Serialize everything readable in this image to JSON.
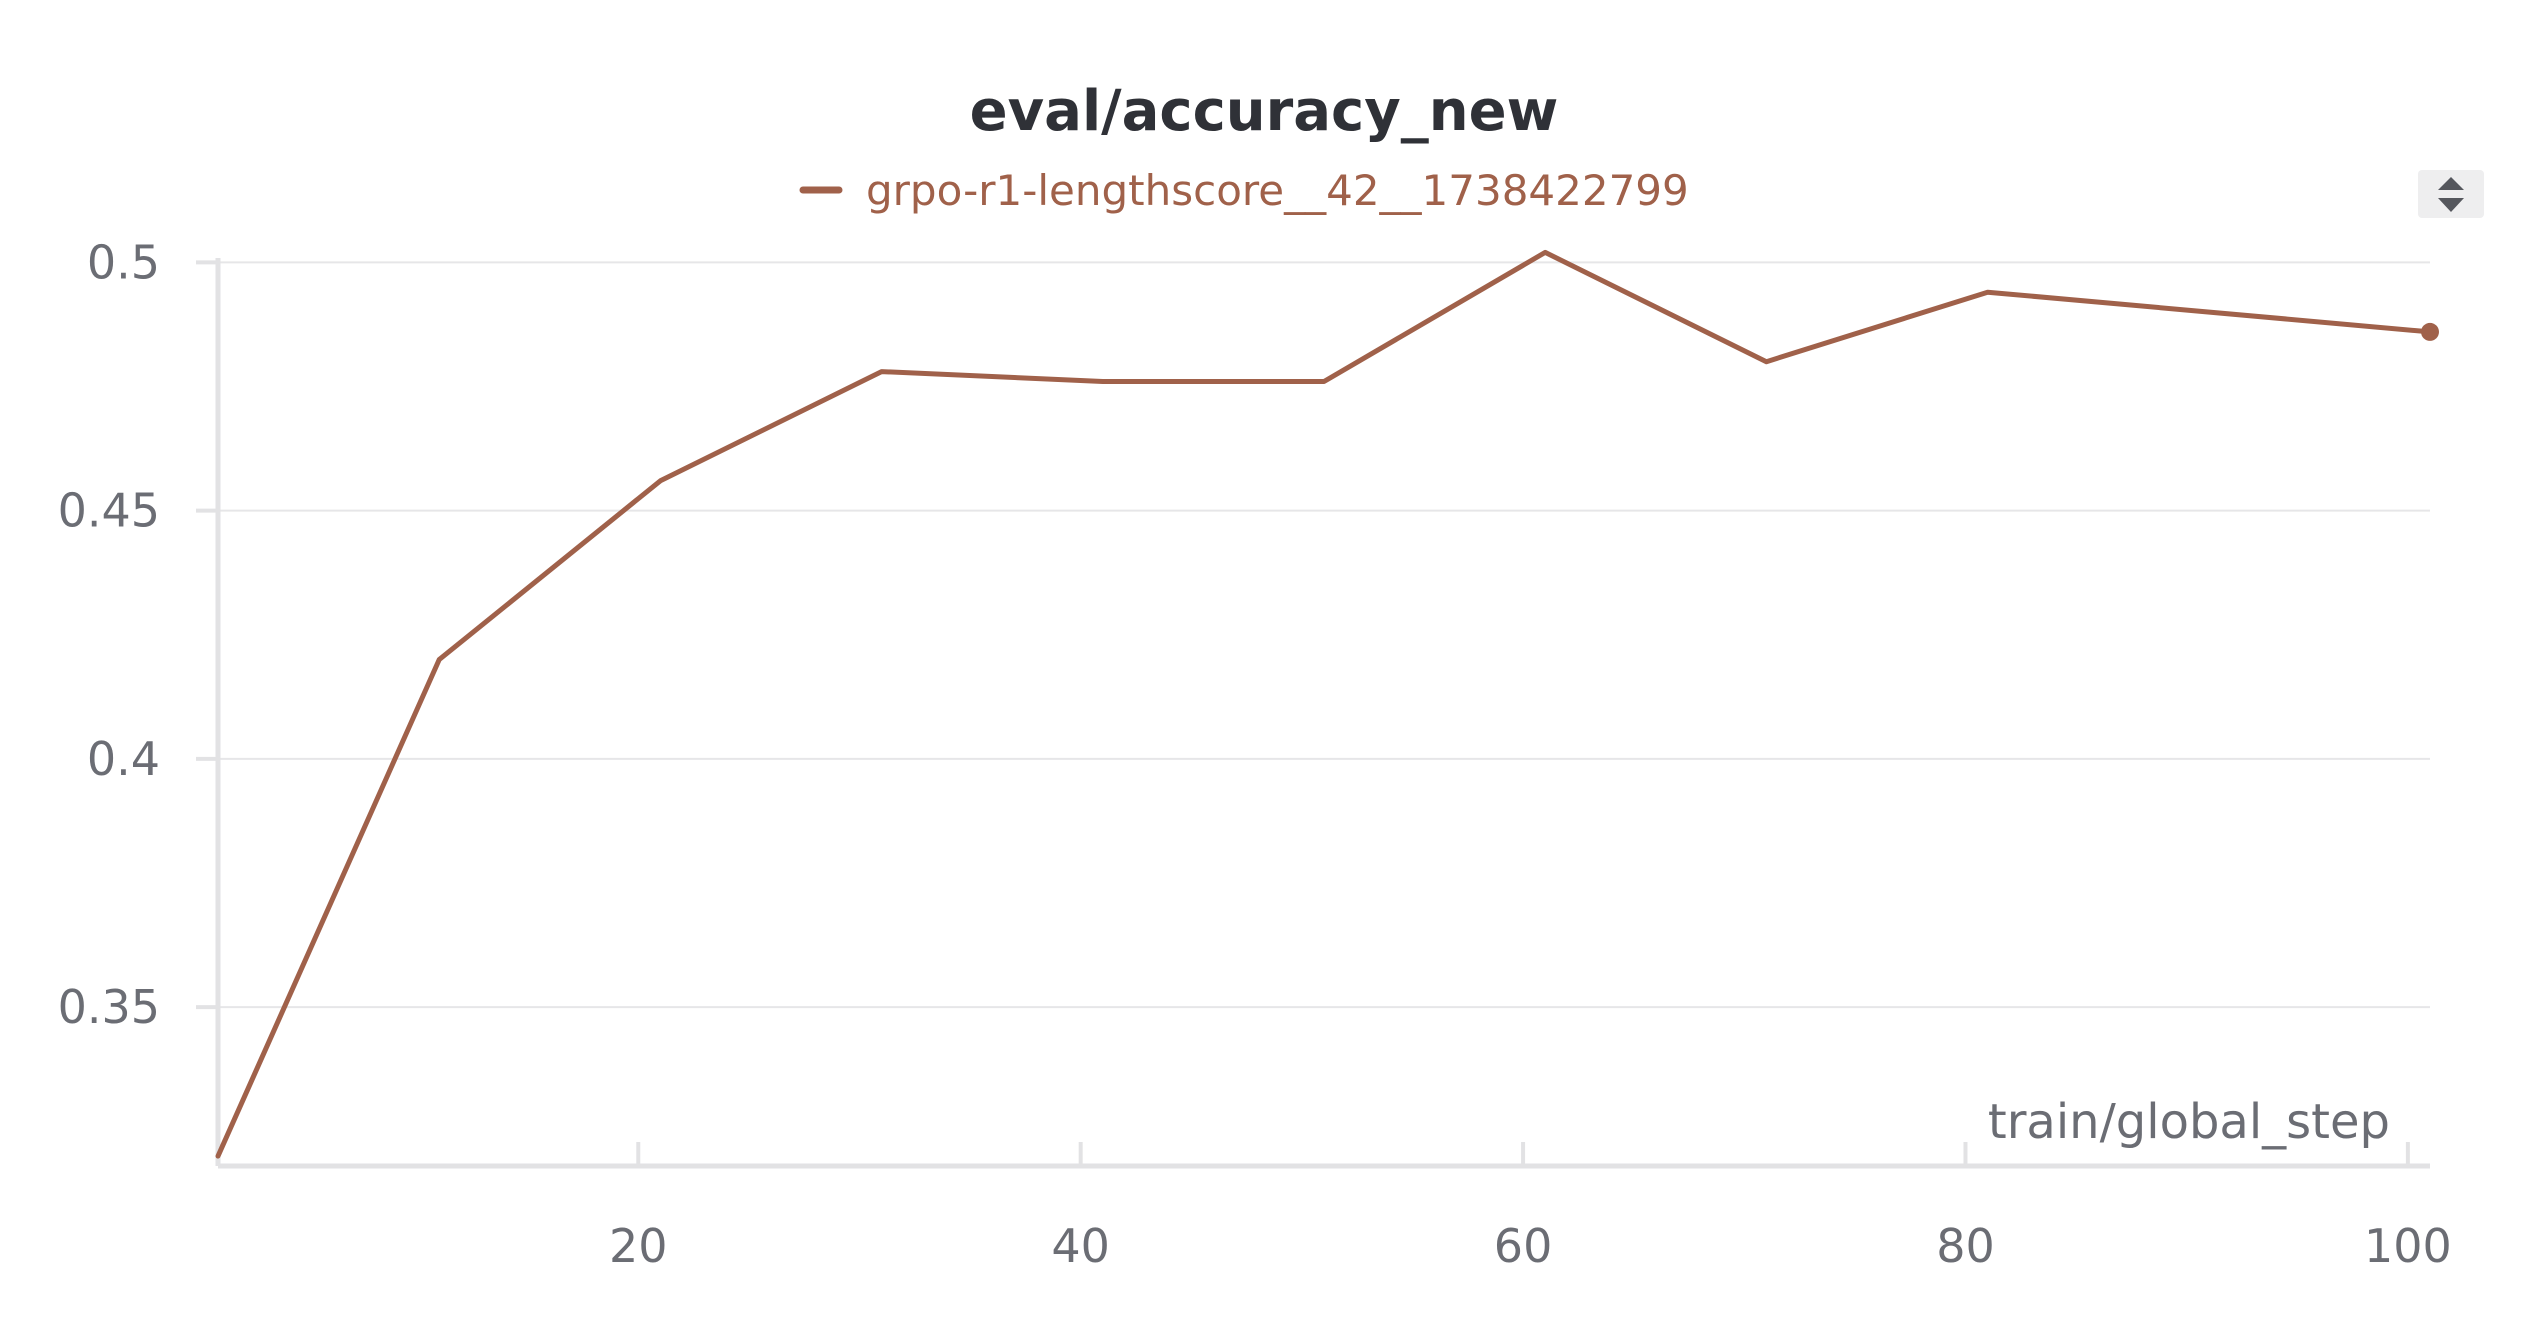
{
  "chart_data": {
    "type": "line",
    "title": "eval/accuracy_new",
    "xlabel": "train/global_step",
    "ylabel": "",
    "xlim": [
      1,
      101
    ],
    "ylim": [
      0.318,
      0.5035
    ],
    "x_ticks": [
      20,
      40,
      60,
      80,
      100
    ],
    "x_tick_labels": [
      "20",
      "40",
      "60",
      "80",
      "100"
    ],
    "y_ticks": [
      0.35,
      0.4,
      0.45,
      0.5
    ],
    "y_tick_labels": [
      "0.35",
      "0.4",
      "0.45",
      "0.5"
    ],
    "grid": true,
    "legend_position": "top-center",
    "series": [
      {
        "name": "grpo-r1-lengthscore__42__1738422799",
        "color": "#a0614a",
        "x": [
          1,
          11,
          21,
          31,
          41,
          51,
          61,
          71,
          81,
          101
        ],
        "y": [
          0.32,
          0.42,
          0.456,
          0.478,
          0.476,
          0.476,
          0.502,
          0.48,
          0.494,
          0.486
        ],
        "end_marker": true
      }
    ]
  },
  "controls": {
    "legend_scroll": "up-down-arrows-icon"
  }
}
